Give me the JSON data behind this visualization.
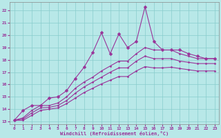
{
  "xlabel": "Windchill (Refroidissement éolien,°C)",
  "bg_color": "#b8e8e8",
  "grid_color": "#88cccc",
  "line_color": "#993399",
  "xlim": [
    -0.5,
    23.5
  ],
  "ylim": [
    12.8,
    22.7
  ],
  "yticks": [
    13,
    14,
    15,
    16,
    17,
    18,
    19,
    20,
    21,
    22
  ],
  "xticks": [
    0,
    1,
    2,
    3,
    4,
    5,
    6,
    7,
    8,
    9,
    10,
    11,
    12,
    13,
    14,
    15,
    16,
    17,
    18,
    19,
    20,
    21,
    22,
    23
  ],
  "spiky_x": [
    0,
    1,
    2,
    3,
    4,
    5,
    6,
    7,
    8,
    9,
    10,
    11,
    12,
    13,
    14,
    15,
    16,
    17,
    18,
    19,
    20,
    21,
    22,
    23
  ],
  "spiky_y": [
    13.1,
    13.9,
    14.3,
    14.3,
    14.9,
    15.0,
    15.5,
    16.5,
    17.4,
    18.6,
    20.2,
    18.5,
    20.1,
    19.0,
    19.5,
    22.3,
    19.5,
    18.8,
    18.8,
    18.8,
    18.5,
    18.3,
    18.1,
    18.1
  ],
  "smooth1_x": [
    0,
    1,
    2,
    3,
    4,
    5,
    6,
    7,
    8,
    9,
    10,
    11,
    12,
    13,
    14,
    15,
    16,
    17,
    18,
    19,
    20,
    21,
    22,
    23
  ],
  "smooth1_y": [
    13.1,
    13.3,
    13.9,
    14.3,
    14.3,
    14.5,
    15.0,
    15.7,
    16.2,
    16.6,
    17.1,
    17.5,
    17.9,
    17.9,
    18.5,
    19.0,
    18.8,
    18.8,
    18.8,
    18.5,
    18.3,
    18.1,
    18.1,
    18.1
  ],
  "smooth2_x": [
    0,
    1,
    2,
    3,
    4,
    5,
    6,
    7,
    8,
    9,
    10,
    11,
    12,
    13,
    14,
    15,
    16,
    17,
    18,
    19,
    20,
    21,
    22,
    23
  ],
  "smooth2_y": [
    13.1,
    13.2,
    13.7,
    14.1,
    14.15,
    14.3,
    14.7,
    15.3,
    15.8,
    16.2,
    16.6,
    17.0,
    17.35,
    17.35,
    17.9,
    18.3,
    18.1,
    18.1,
    18.1,
    17.9,
    17.8,
    17.7,
    17.7,
    17.7
  ],
  "smooth3_x": [
    0,
    1,
    2,
    3,
    4,
    5,
    6,
    7,
    8,
    9,
    10,
    11,
    12,
    13,
    14,
    15,
    16,
    17,
    18,
    19,
    20,
    21,
    22,
    23
  ],
  "smooth3_y": [
    13.1,
    13.1,
    13.5,
    13.9,
    14.0,
    14.1,
    14.45,
    14.9,
    15.35,
    15.7,
    16.05,
    16.35,
    16.65,
    16.65,
    17.1,
    17.45,
    17.35,
    17.35,
    17.4,
    17.3,
    17.2,
    17.1,
    17.1,
    17.1
  ]
}
